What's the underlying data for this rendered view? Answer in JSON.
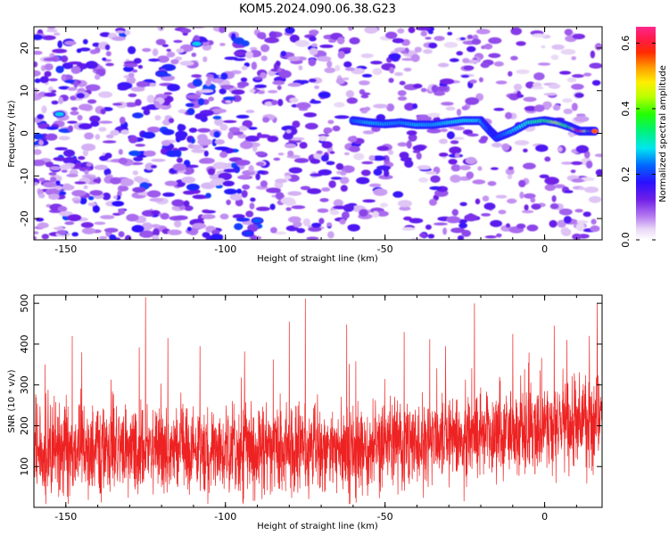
{
  "figure": {
    "title": "KOM5.2024.090.06.38.G23"
  },
  "chart_data": [
    {
      "type": "heatmap",
      "xlabel": "Height of straight line (km)",
      "ylabel": "Frequency (Hz)",
      "xlim": [
        -160,
        18
      ],
      "ylim": [
        -25,
        25
      ],
      "xticks": [
        -150,
        -100,
        -50,
        0
      ],
      "yticks": [
        -20,
        -10,
        0,
        10,
        20
      ],
      "colorbar": {
        "label": "Normalized spectral amplitude",
        "range": [
          0.0,
          0.65
        ],
        "ticks": [
          0.0,
          0.2,
          0.4,
          0.6
        ],
        "colormap": "rainbow (white/lavender-purple-blue-cyan-green-yellow-orange-red-magenta)"
      },
      "ridge": [
        {
          "x": -60,
          "y": 3.0,
          "v": 0.22
        },
        {
          "x": -55,
          "y": 2.5,
          "v": 0.26
        },
        {
          "x": -50,
          "y": 2.2,
          "v": 0.25
        },
        {
          "x": -45,
          "y": 2.5,
          "v": 0.24
        },
        {
          "x": -40,
          "y": 2.0,
          "v": 0.26
        },
        {
          "x": -35,
          "y": 2.0,
          "v": 0.25
        },
        {
          "x": -30,
          "y": 2.5,
          "v": 0.27
        },
        {
          "x": -25,
          "y": 3.0,
          "v": 0.28
        },
        {
          "x": -20,
          "y": 3.0,
          "v": 0.27
        },
        {
          "x": -17,
          "y": 0.5,
          "v": 0.22
        },
        {
          "x": -15,
          "y": -1.0,
          "v": 0.2
        },
        {
          "x": -10,
          "y": 0.5,
          "v": 0.26
        },
        {
          "x": -5,
          "y": 2.5,
          "v": 0.3
        },
        {
          "x": 0,
          "y": 3.0,
          "v": 0.35
        },
        {
          "x": 4,
          "y": 2.5,
          "v": 0.45
        },
        {
          "x": 8,
          "y": 1.5,
          "v": 0.33
        },
        {
          "x": 11,
          "y": 0.5,
          "v": 0.62
        },
        {
          "x": 14,
          "y": 0.5,
          "v": 0.4
        },
        {
          "x": 16,
          "y": 0.5,
          "v": 0.58
        }
      ],
      "hotspots": [
        {
          "x": -152,
          "y": 4.5,
          "v": 0.27
        },
        {
          "x": -120,
          "y": 14,
          "v": 0.2
        },
        {
          "x": -109,
          "y": 21,
          "v": 0.27
        },
        {
          "x": -69,
          "y": 9,
          "v": 0.18
        },
        {
          "x": -47,
          "y": 18,
          "v": 0.17
        },
        {
          "x": -90,
          "y": -20.5,
          "v": 0.22
        },
        {
          "x": -93,
          "y": -23.5,
          "v": 0.2
        }
      ]
    },
    {
      "type": "line",
      "xlabel": "Height of straight line (km)",
      "ylabel": "SNR (10 * v/v)",
      "xlim": [
        -160,
        18
      ],
      "ylim": [
        0,
        520
      ],
      "xticks": [
        -150,
        -100,
        -50,
        0
      ],
      "yticks": [
        100,
        200,
        300,
        400,
        500
      ],
      "series": [
        {
          "color": "#ee2222",
          "description": "dense noisy trace, ~2800 samples; baseline ~140 for x<-60, rising to ~190-230 for x>-10",
          "n_samples": 2800,
          "spikes": [
            {
              "x": -156.5,
              "y": 350
            },
            {
              "x": -148,
              "y": 420
            },
            {
              "x": -145,
              "y": 380
            },
            {
              "x": -127,
              "y": 392
            },
            {
              "x": -125,
              "y": 515
            },
            {
              "x": -118,
              "y": 415
            },
            {
              "x": -108,
              "y": 395
            },
            {
              "x": -94,
              "y": 382
            },
            {
              "x": -85,
              "y": 362
            },
            {
              "x": -80,
              "y": 455
            },
            {
              "x": -75,
              "y": 512
            },
            {
              "x": -62,
              "y": 448
            },
            {
              "x": -44,
              "y": 430
            },
            {
              "x": -36,
              "y": 412
            },
            {
              "x": -31,
              "y": 395
            },
            {
              "x": -22,
              "y": 500
            },
            {
              "x": -10,
              "y": 425
            },
            {
              "x": 3,
              "y": 445
            },
            {
              "x": 7,
              "y": 410
            },
            {
              "x": 14,
              "y": 420
            },
            {
              "x": 16.5,
              "y": 500
            }
          ]
        }
      ]
    }
  ]
}
